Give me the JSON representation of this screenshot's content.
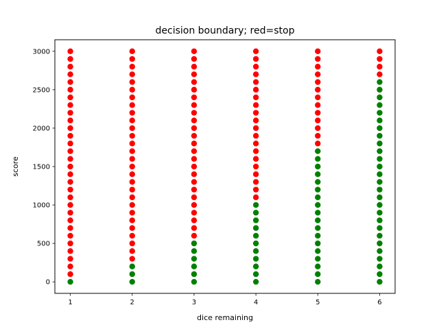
{
  "chart_data": {
    "type": "scatter",
    "title": "decision boundary; red=stop",
    "xlabel": "dice remaining",
    "ylabel": "score",
    "xlim": [
      0.75,
      6.25
    ],
    "ylim": [
      -150,
      3150
    ],
    "xticks": [
      1,
      2,
      3,
      4,
      5,
      6
    ],
    "yticks": [
      0,
      500,
      1000,
      1500,
      2000,
      2500,
      3000
    ],
    "grid": false,
    "y_step": 100,
    "y_max": 3000,
    "colors": {
      "stop": "#ff0000",
      "continue": "#008000"
    },
    "continue_max_score": {
      "1": 0,
      "2": 200,
      "3": 500,
      "4": 1000,
      "5": 1700,
      "6": 2600
    }
  }
}
